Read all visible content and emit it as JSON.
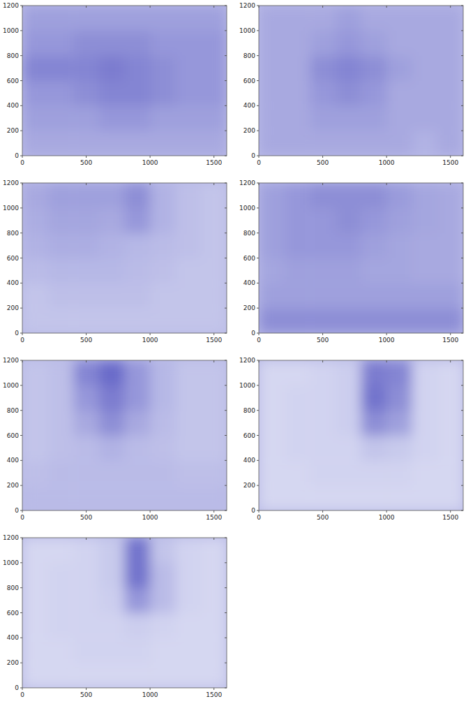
{
  "chart_data": [
    {
      "type": "heatmap",
      "color": "#3c3cb8",
      "xlim": [
        0,
        1600
      ],
      "ylim": [
        0,
        1200
      ],
      "xticks": [
        0,
        500,
        1000,
        1500
      ],
      "yticks": [
        0,
        200,
        400,
        600,
        800,
        1000,
        1200
      ],
      "x_edges": [
        0,
        200,
        400,
        600,
        800,
        1000,
        1200,
        1400,
        1600
      ],
      "y_edges": [
        0,
        200,
        400,
        600,
        800,
        1000,
        1200
      ],
      "z": [
        [
          0.4,
          0.4,
          0.4,
          0.4,
          0.4,
          0.4,
          0.4,
          0.4
        ],
        [
          0.45,
          0.45,
          0.45,
          0.5,
          0.5,
          0.45,
          0.45,
          0.45
        ],
        [
          0.5,
          0.5,
          0.55,
          0.6,
          0.6,
          0.55,
          0.5,
          0.5
        ],
        [
          0.6,
          0.6,
          0.6,
          0.65,
          0.6,
          0.55,
          0.5,
          0.5
        ],
        [
          0.5,
          0.5,
          0.55,
          0.55,
          0.55,
          0.5,
          0.5,
          0.5
        ],
        [
          0.45,
          0.45,
          0.45,
          0.45,
          0.45,
          0.45,
          0.45,
          0.45
        ]
      ]
    },
    {
      "type": "heatmap",
      "color": "#3c3cb8",
      "xlim": [
        0,
        1600
      ],
      "ylim": [
        0,
        1200
      ],
      "xticks": [
        0,
        500,
        1000,
        1500
      ],
      "yticks": [
        0,
        200,
        400,
        600,
        800,
        1000,
        1200
      ],
      "x_edges": [
        0,
        200,
        400,
        600,
        800,
        1000,
        1200,
        1400,
        1600
      ],
      "y_edges": [
        0,
        200,
        400,
        600,
        800,
        1000,
        1200
      ],
      "z": [
        [
          0.4,
          0.4,
          0.4,
          0.4,
          0.4,
          0.4,
          0.35,
          0.4
        ],
        [
          0.4,
          0.4,
          0.45,
          0.45,
          0.45,
          0.4,
          0.4,
          0.4
        ],
        [
          0.4,
          0.4,
          0.5,
          0.55,
          0.5,
          0.4,
          0.4,
          0.4
        ],
        [
          0.4,
          0.4,
          0.55,
          0.6,
          0.55,
          0.45,
          0.4,
          0.4
        ],
        [
          0.4,
          0.4,
          0.45,
          0.5,
          0.45,
          0.4,
          0.4,
          0.4
        ],
        [
          0.4,
          0.4,
          0.4,
          0.45,
          0.4,
          0.4,
          0.4,
          0.4
        ]
      ]
    },
    {
      "type": "heatmap",
      "color": "#3c3cb8",
      "xlim": [
        0,
        1600
      ],
      "ylim": [
        0,
        1200
      ],
      "xticks": [
        0,
        500,
        1000,
        1500
      ],
      "yticks": [
        0,
        200,
        400,
        600,
        800,
        1000,
        1200
      ],
      "x_edges": [
        0,
        200,
        400,
        600,
        800,
        1000,
        1200,
        1400,
        1600
      ],
      "y_edges": [
        0,
        200,
        400,
        600,
        800,
        1000,
        1200
      ],
      "z": [
        [
          0.25,
          0.25,
          0.25,
          0.25,
          0.25,
          0.25,
          0.25,
          0.25
        ],
        [
          0.25,
          0.28,
          0.28,
          0.28,
          0.28,
          0.25,
          0.25,
          0.25
        ],
        [
          0.3,
          0.32,
          0.32,
          0.32,
          0.3,
          0.28,
          0.25,
          0.25
        ],
        [
          0.35,
          0.38,
          0.38,
          0.35,
          0.32,
          0.3,
          0.28,
          0.25
        ],
        [
          0.38,
          0.42,
          0.42,
          0.4,
          0.5,
          0.35,
          0.28,
          0.25
        ],
        [
          0.4,
          0.45,
          0.45,
          0.45,
          0.55,
          0.35,
          0.28,
          0.25
        ]
      ]
    },
    {
      "type": "heatmap",
      "color": "#3c3cb8",
      "xlim": [
        0,
        1600
      ],
      "ylim": [
        0,
        1200
      ],
      "xticks": [
        0,
        500,
        1000,
        1500
      ],
      "yticks": [
        0,
        200,
        400,
        600,
        800,
        1000,
        1200
      ],
      "x_edges": [
        0,
        200,
        400,
        600,
        800,
        1000,
        1200,
        1400,
        1600
      ],
      "y_edges": [
        0,
        200,
        400,
        600,
        800,
        1000,
        1200
      ],
      "z": [
        [
          0.55,
          0.55,
          0.55,
          0.55,
          0.55,
          0.55,
          0.55,
          0.55
        ],
        [
          0.45,
          0.45,
          0.45,
          0.45,
          0.45,
          0.45,
          0.45,
          0.45
        ],
        [
          0.42,
          0.45,
          0.45,
          0.45,
          0.42,
          0.42,
          0.4,
          0.4
        ],
        [
          0.45,
          0.5,
          0.5,
          0.5,
          0.45,
          0.42,
          0.4,
          0.4
        ],
        [
          0.45,
          0.5,
          0.5,
          0.55,
          0.5,
          0.45,
          0.42,
          0.4
        ],
        [
          0.45,
          0.5,
          0.55,
          0.55,
          0.55,
          0.48,
          0.42,
          0.4
        ]
      ]
    },
    {
      "type": "heatmap",
      "color": "#3c3cb8",
      "xlim": [
        0,
        1600
      ],
      "ylim": [
        0,
        1200
      ],
      "xticks": [
        0,
        500,
        1000,
        1500
      ],
      "yticks": [
        0,
        200,
        400,
        600,
        800,
        1000,
        1200
      ],
      "x_edges": [
        0,
        200,
        400,
        600,
        800,
        1000,
        1200,
        1400,
        1600
      ],
      "y_edges": [
        0,
        200,
        400,
        600,
        800,
        1000,
        1200
      ],
      "z": [
        [
          0.3,
          0.3,
          0.3,
          0.3,
          0.3,
          0.3,
          0.3,
          0.3
        ],
        [
          0.28,
          0.3,
          0.3,
          0.3,
          0.3,
          0.3,
          0.28,
          0.28
        ],
        [
          0.25,
          0.28,
          0.3,
          0.35,
          0.3,
          0.28,
          0.25,
          0.25
        ],
        [
          0.25,
          0.28,
          0.4,
          0.55,
          0.4,
          0.3,
          0.25,
          0.25
        ],
        [
          0.25,
          0.28,
          0.5,
          0.65,
          0.5,
          0.32,
          0.25,
          0.25
        ],
        [
          0.25,
          0.28,
          0.6,
          0.75,
          0.5,
          0.32,
          0.25,
          0.25
        ]
      ]
    },
    {
      "type": "heatmap",
      "color": "#3c3cb8",
      "xlim": [
        0,
        1600
      ],
      "ylim": [
        0,
        1200
      ],
      "xticks": [
        0,
        500,
        1000,
        1500
      ],
      "yticks": [
        0,
        200,
        400,
        600,
        800,
        1000,
        1200
      ],
      "x_edges": [
        0,
        200,
        400,
        600,
        800,
        1000,
        1200,
        1400,
        1600
      ],
      "y_edges": [
        0,
        200,
        400,
        600,
        800,
        1000,
        1200
      ],
      "z": [
        [
          0.15,
          0.15,
          0.15,
          0.15,
          0.15,
          0.15,
          0.15,
          0.15
        ],
        [
          0.15,
          0.15,
          0.17,
          0.17,
          0.17,
          0.17,
          0.15,
          0.15
        ],
        [
          0.15,
          0.17,
          0.17,
          0.17,
          0.25,
          0.22,
          0.17,
          0.15
        ],
        [
          0.15,
          0.17,
          0.17,
          0.2,
          0.55,
          0.45,
          0.17,
          0.15
        ],
        [
          0.15,
          0.17,
          0.17,
          0.2,
          0.7,
          0.55,
          0.17,
          0.15
        ],
        [
          0.15,
          0.15,
          0.17,
          0.2,
          0.65,
          0.6,
          0.17,
          0.15
        ]
      ]
    },
    {
      "type": "heatmap",
      "color": "#3c3cb8",
      "xlim": [
        0,
        1600
      ],
      "ylim": [
        0,
        1200
      ],
      "xticks": [
        0,
        500,
        1000,
        1500
      ],
      "yticks": [
        0,
        200,
        400,
        600,
        800,
        1000,
        1200
      ],
      "x_edges": [
        0,
        200,
        400,
        600,
        800,
        1000,
        1200,
        1400,
        1600
      ],
      "y_edges": [
        0,
        200,
        400,
        600,
        800,
        1000,
        1200
      ],
      "z": [
        [
          0.15,
          0.15,
          0.15,
          0.15,
          0.15,
          0.15,
          0.15,
          0.15
        ],
        [
          0.15,
          0.15,
          0.17,
          0.17,
          0.17,
          0.15,
          0.15,
          0.15
        ],
        [
          0.15,
          0.17,
          0.17,
          0.17,
          0.2,
          0.17,
          0.15,
          0.15
        ],
        [
          0.15,
          0.17,
          0.17,
          0.2,
          0.5,
          0.3,
          0.17,
          0.15
        ],
        [
          0.15,
          0.17,
          0.17,
          0.22,
          0.7,
          0.3,
          0.17,
          0.15
        ],
        [
          0.15,
          0.15,
          0.17,
          0.22,
          0.7,
          0.25,
          0.17,
          0.15
        ]
      ]
    }
  ]
}
